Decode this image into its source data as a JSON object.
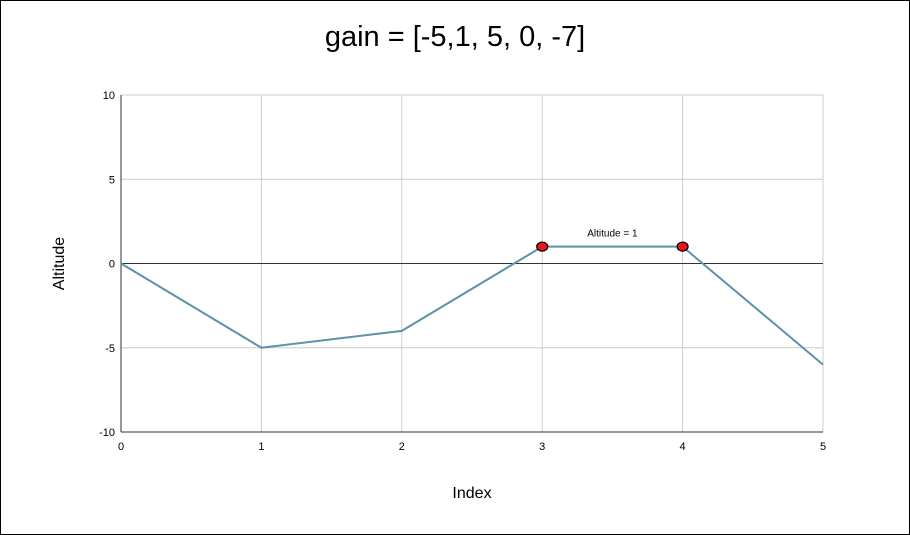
{
  "chart_data": {
    "type": "line",
    "title": "gain = [-5,1, 5, 0, -7]",
    "xlabel": "Index",
    "ylabel": "Altitude",
    "xlim": [
      0,
      5
    ],
    "ylim": [
      -10,
      10
    ],
    "x_ticks": [
      0,
      1,
      2,
      3,
      4,
      5
    ],
    "y_ticks": [
      10,
      5,
      0,
      -5,
      -10
    ],
    "grid": true,
    "series": [
      {
        "x": [
          0,
          1,
          2,
          3,
          4,
          5
        ],
        "values": [
          0,
          -5,
          -4,
          1,
          1,
          -6
        ],
        "color": "#5b93a8"
      }
    ],
    "highlighted_points": [
      {
        "x": 3,
        "y": 1
      },
      {
        "x": 4,
        "y": 1
      }
    ],
    "highlight_color": "#e8141e",
    "annotation": {
      "text": "Altitude = 1",
      "x": 3.5,
      "y": 1
    }
  }
}
